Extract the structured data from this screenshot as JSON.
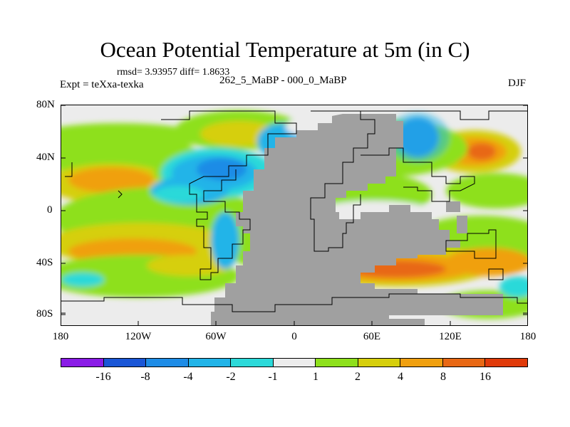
{
  "title": "Ocean Potential Temperature at 5m (in C)",
  "stats": "rmsd= 3.93957 diff= 1.8633",
  "expt": "Expt = teXxa-texka",
  "subtitle": "262_5_MaBP - 000_0_MaBP",
  "season": "DJF",
  "lat_labels": [
    "80N",
    "40N",
    "0",
    "40S",
    "80S"
  ],
  "lon_labels": [
    "180",
    "120W",
    "60W",
    "0",
    "60E",
    "120E",
    "180"
  ],
  "colorbar": {
    "labels": [
      "-16",
      "-8",
      "-4",
      "-2",
      "-1",
      "1",
      "2",
      "4",
      "8",
      "16"
    ],
    "colors": [
      "#8a1ce6",
      "#1a56d6",
      "#1e8ce6",
      "#22b4e8",
      "#2cd9d9",
      "#ececec",
      "#8ee01c",
      "#d6cf0c",
      "#f0a010",
      "#e86814",
      "#e03a0a"
    ]
  },
  "land_color": "#a0a0a0"
}
